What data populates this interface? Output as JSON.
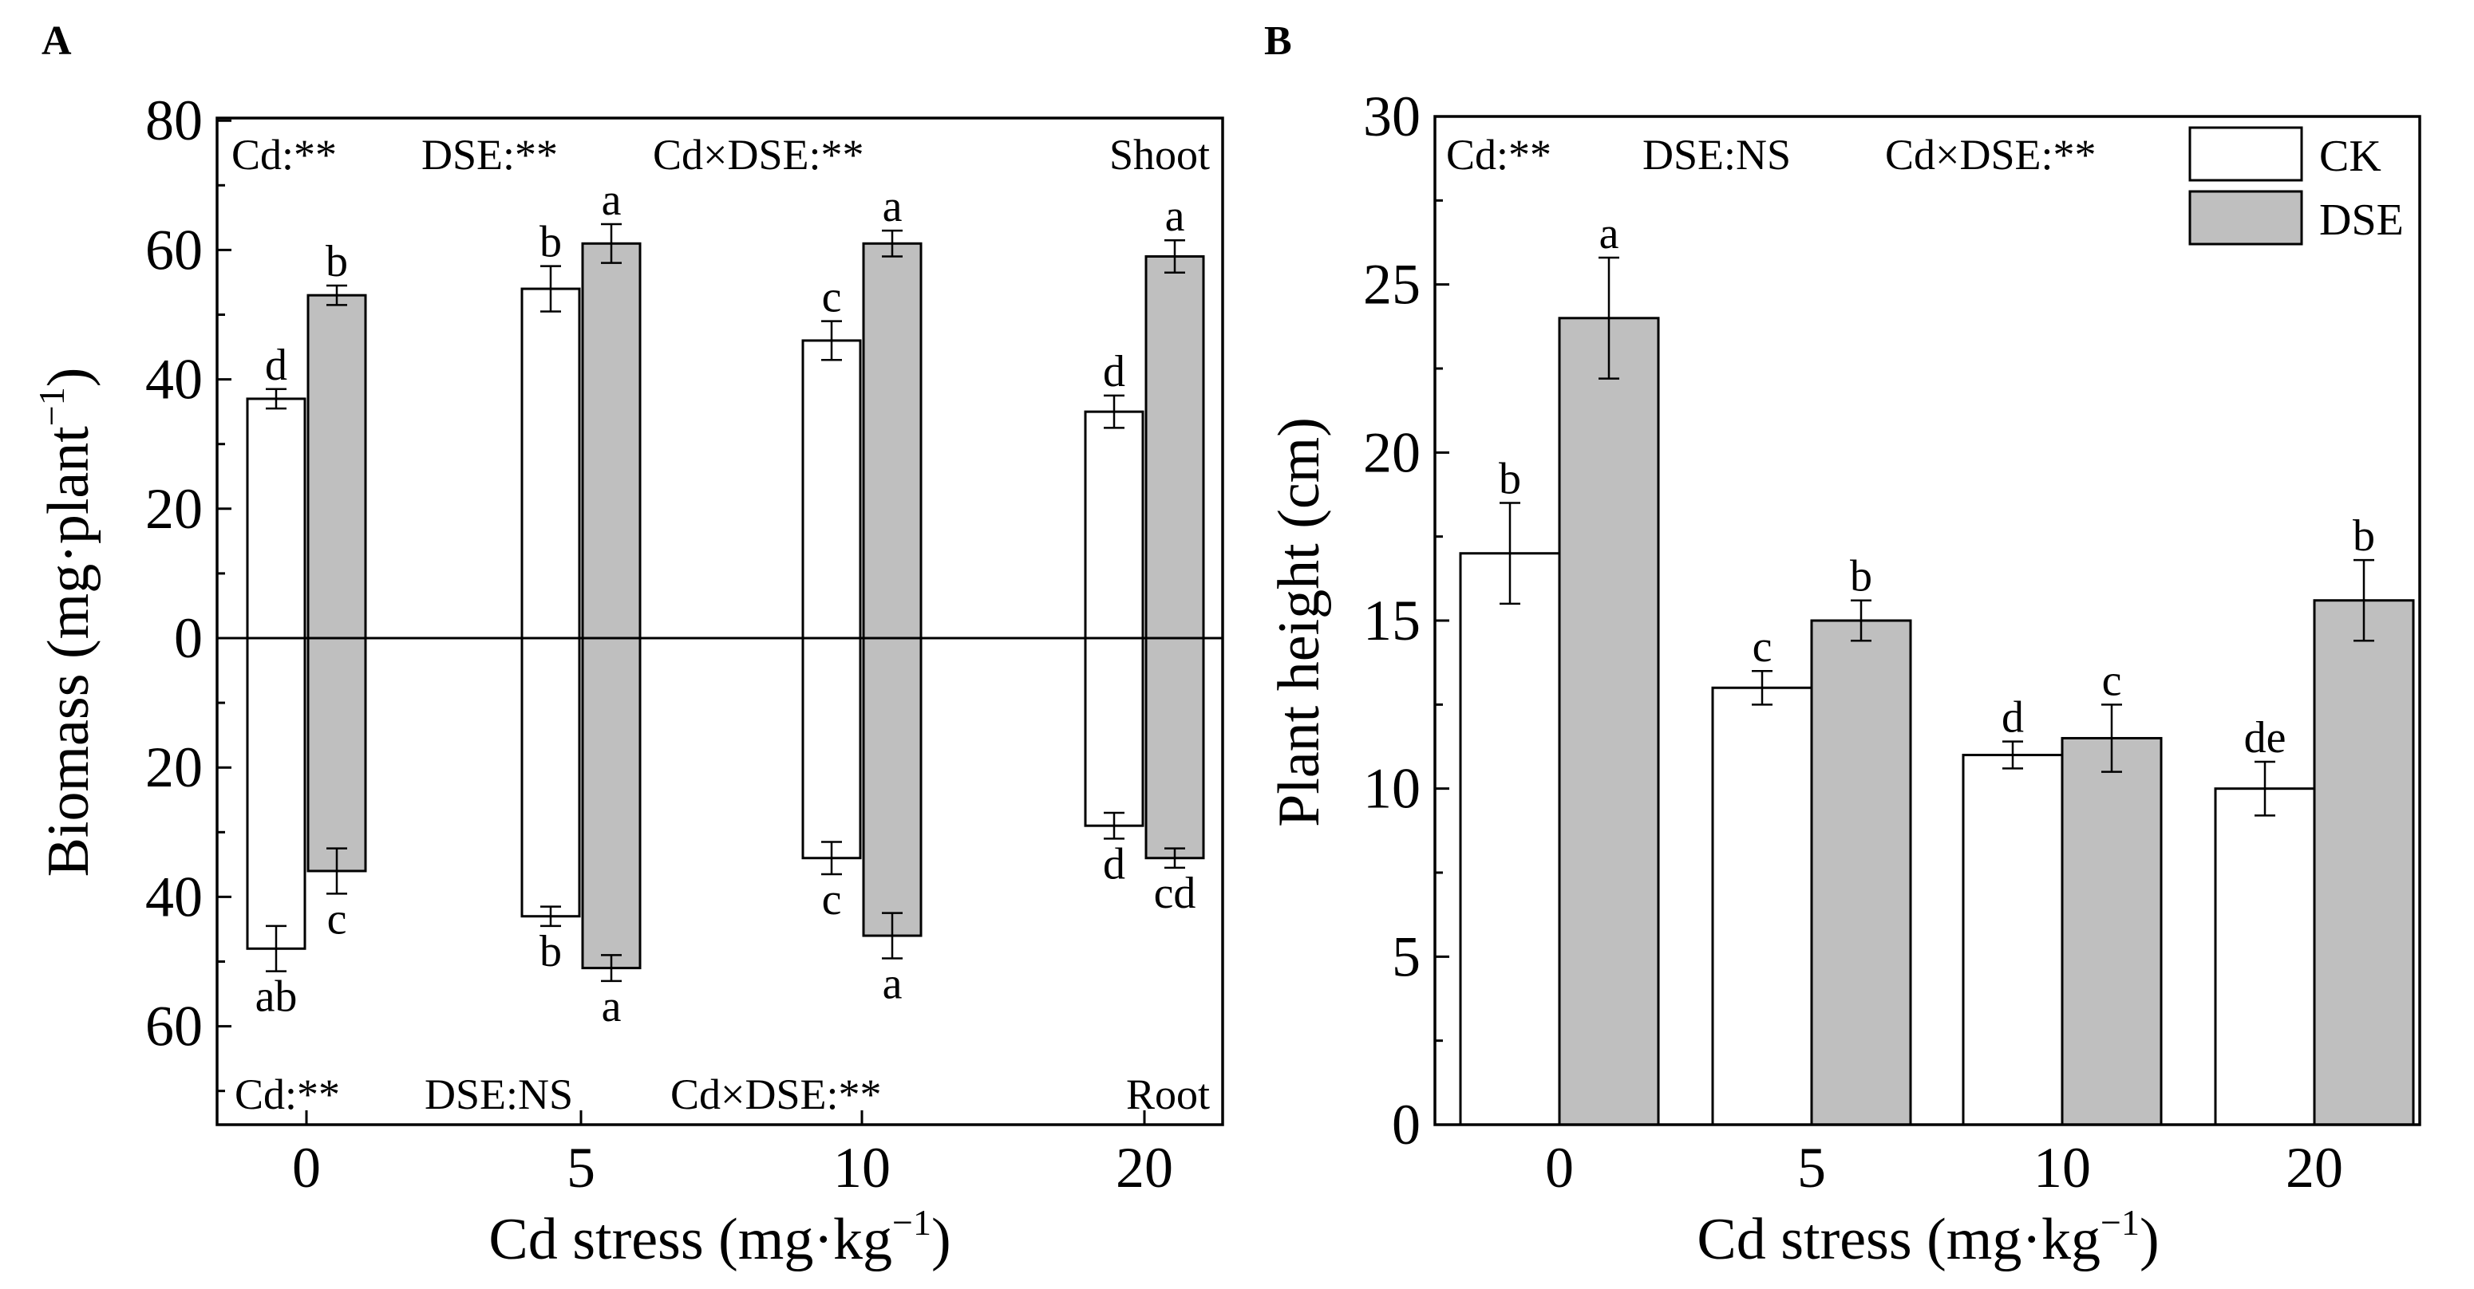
{
  "panel_a": {
    "label": "A",
    "stats_top": [
      "Cd:**",
      "DSE:**",
      "Cd×DSE:**",
      "Shoot"
    ],
    "stats_bottom": [
      "Cd:**",
      "DSE:NS",
      "Cd×DSE:**",
      "Root"
    ],
    "ylabel_main": "Biomass (mg·plant",
    "ylabel_sup": "−1",
    "ylabel_close": ")",
    "xlabel_main": "Cd stress (mg·kg",
    "xlabel_sup": "−1",
    "xlabel_close": ")"
  },
  "panel_b": {
    "label": "B",
    "stats_top": [
      "Cd:**",
      "DSE:NS",
      "Cd×DSE:**"
    ],
    "ylabel": "Plant height (cm)",
    "xlabel_main": "Cd stress (mg·kg",
    "xlabel_sup": "−1",
    "xlabel_close": ")"
  },
  "legend": {
    "ck": "CK",
    "dse": "DSE"
  },
  "colors": {
    "ck": "#ffffff",
    "dse": "#bfbfbf",
    "axis": "#000000"
  },
  "chart_data": [
    {
      "type": "bar",
      "panel": "A",
      "subtype": "mirrored-bar",
      "categories": [
        "0",
        "5",
        "10",
        "20"
      ],
      "yticks_top": [
        80,
        60,
        40,
        20,
        0
      ],
      "yticks_bottom": [
        20,
        40,
        60
      ],
      "ylim": [
        -75,
        80
      ],
      "series": [
        {
          "name": "CK",
          "shoot": [
            37,
            54,
            46,
            35
          ],
          "shoot_err": [
            1.5,
            3.5,
            3,
            2.5
          ],
          "shoot_letters": [
            "d",
            "b",
            "c",
            "d"
          ],
          "root": [
            48,
            43,
            34,
            29
          ],
          "root_err": [
            3.5,
            1.5,
            2.5,
            2
          ],
          "root_letters": [
            "ab",
            "b",
            "c",
            "d"
          ]
        },
        {
          "name": "DSE",
          "shoot": [
            53,
            61,
            61,
            59
          ],
          "shoot_err": [
            1.5,
            3,
            2,
            2.5
          ],
          "shoot_letters": [
            "b",
            "a",
            "a",
            "a"
          ],
          "root": [
            36,
            51,
            46,
            34
          ],
          "root_err": [
            3.5,
            2,
            3.5,
            1.5
          ],
          "root_letters": [
            "c",
            "a",
            "a",
            "cd"
          ]
        }
      ]
    },
    {
      "type": "bar",
      "panel": "B",
      "categories": [
        "0",
        "5",
        "10",
        "20"
      ],
      "yticks": [
        0,
        5,
        10,
        15,
        20,
        25,
        30
      ],
      "ylim": [
        0,
        30
      ],
      "legend_position": "top-right",
      "series": [
        {
          "name": "CK",
          "values": [
            17,
            13,
            11,
            10
          ],
          "err": [
            1.5,
            0.5,
            0.4,
            0.8
          ],
          "letters": [
            "b",
            "c",
            "d",
            "de"
          ]
        },
        {
          "name": "DSE",
          "values": [
            24,
            15,
            11.5,
            15.6
          ],
          "err": [
            1.8,
            0.6,
            1,
            1.2
          ],
          "letters": [
            "a",
            "b",
            "c",
            "b"
          ]
        }
      ]
    }
  ]
}
